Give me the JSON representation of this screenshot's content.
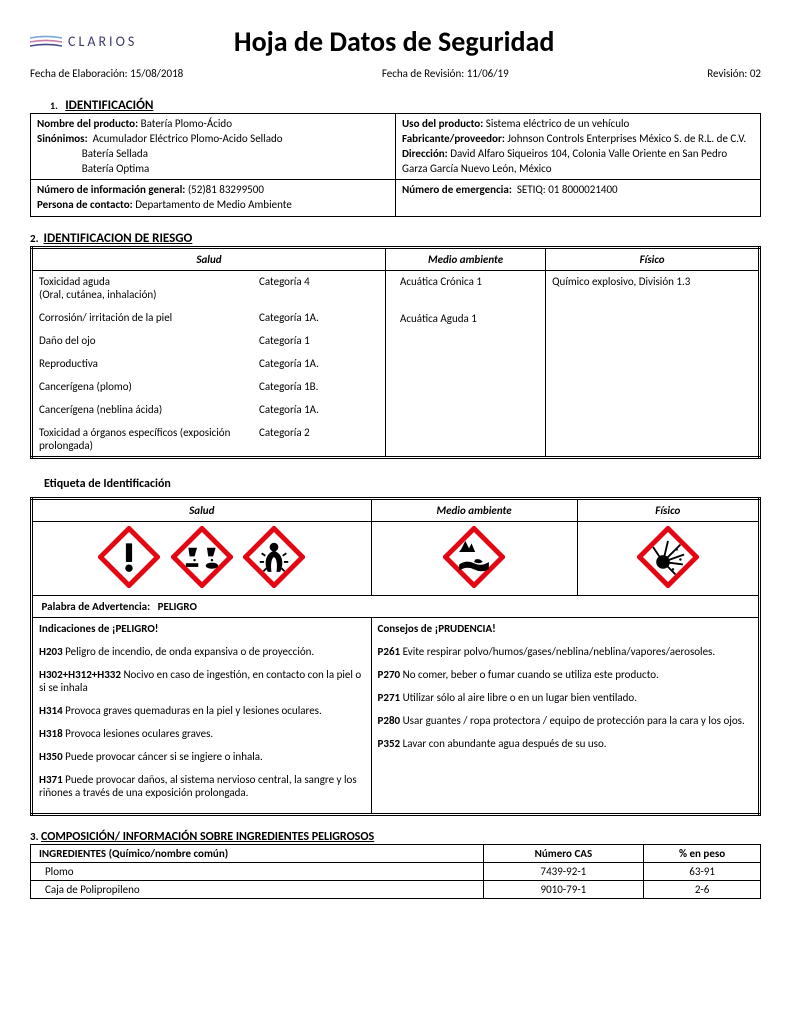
{
  "brand": "CLARIOS",
  "title": "Hoja de Datos de Seguridad",
  "meta": {
    "elab_label": "Fecha de Elaboración:",
    "elab_value": "15/08/2018",
    "rev_date_label": "Fecha de Revisión:",
    "rev_date_value": "11/06/19",
    "rev_label": "Revisión:",
    "rev_value": "02"
  },
  "s1": {
    "num": "1.",
    "title": "IDENTIFICACIÓN",
    "left1_label": "Nombre del producto:",
    "left1_value": "Batería Plomo-Ácido",
    "syn_label": "Sinónimos:",
    "syn1": "Acumulador Eléctrico Plomo-Acido Sellado",
    "syn2": "Batería Sellada",
    "syn3": "Batería Optima",
    "right1_label": "Uso del producto:",
    "right1_value": "Sistema eléctrico de un vehículo",
    "right2_label": "Fabricante/proveedor:",
    "right2_value": "Johnson Controls Enterprises México S. de R.L. de C.V.",
    "right3_label": "Dirección:",
    "right3_value": "David Alfaro Siqueiros 104, Colonia Valle Oriente en San Pedro Garza García Nuevo León, México",
    "left2_label": "Número de información general:",
    "left2_value": "(52)81 83299500",
    "left3_label": "Persona de contacto:",
    "left3_value": "Departamento de Medio Ambiente",
    "right4_label": "Número de emergencia:",
    "right4_value": "SETIQ: 01 8000021400"
  },
  "s2": {
    "num": "2.",
    "title": "IDENTIFICACION DE RIESGO",
    "col1": "Salud",
    "col2": "Medio ambiente",
    "col3": "Físico",
    "health": [
      {
        "name": "Toxicidad aguda",
        "extra": "(Oral, cutánea, inhalación)",
        "cat": "Categoría 4"
      },
      {
        "name": "Corrosión/ irritación de la piel",
        "extra": "",
        "cat": "Categoría 1A."
      },
      {
        "name": "Daño del ojo",
        "extra": "",
        "cat": "Categoría 1"
      },
      {
        "name": "Reproductiva",
        "extra": "",
        "cat": "Categoría 1A."
      },
      {
        "name": "Cancerígena (plomo)",
        "extra": "",
        "cat": "Categoría 1B."
      },
      {
        "name": "Cancerígena (neblina ácida)",
        "extra": "",
        "cat": "Categoría 1A."
      },
      {
        "name": "Toxicidad a órganos específicos (exposición prolongada)",
        "extra": "",
        "cat": "Categoría 2"
      }
    ],
    "env1": "Acuática Crónica 1",
    "env2": "Acuática Aguda 1",
    "phys1": "Químico explosivo, División 1.3",
    "etiqueta": "Etiqueta de Identificación",
    "warn_label": "Palabra de Advertencia:",
    "warn_value": "PELIGRO",
    "danger_head": "Indicaciones de  ¡PELIGRO!",
    "caution_head": "Consejos de ¡PRUDENCIA!",
    "H": [
      {
        "code": "H203",
        "text": " Peligro de incendio, de onda expansiva o de proyección."
      },
      {
        "code": "H302+H312+H332",
        "text": " Nocivo en caso de ingestión, en contacto con la piel o si se inhala"
      },
      {
        "code": "H314",
        "text": " Provoca graves quemaduras en la piel y lesiones oculares."
      },
      {
        "code": "H318",
        "text": " Provoca lesiones oculares graves."
      },
      {
        "code": "H350",
        "text": " Puede provocar cáncer si se ingiere o inhala."
      },
      {
        "code": "H371",
        "text": " Puede provocar daños, al sistema nervioso central, la sangre y los riñones a través de una exposición prolongada."
      }
    ],
    "P": [
      {
        "code": "P261",
        "text": " Evite respirar polvo/humos/gases/neblina/neblina/vapores/aerosoles."
      },
      {
        "code": "P270",
        "text": " No comer, beber o fumar cuando se utiliza este producto."
      },
      {
        "code": "P271",
        "text": " Utilizar sólo al aire libre o en un lugar bien ventilado."
      },
      {
        "code": "P280",
        "text": " Usar guantes / ropa protectora / equipo de protección para la cara y los ojos."
      },
      {
        "code": "P352",
        "text": " Lavar con abundante agua después de su uso."
      }
    ]
  },
  "s3": {
    "num": "3.",
    "title": "COMPOSICIÓN/ INFORMACIÓN SOBRE INGREDIENTES PELIGROSOS",
    "col1": "INGREDIENTES (Químico/nombre común)",
    "col2": "Número CAS",
    "col3": "% en peso",
    "rows": [
      {
        "name": "Plomo",
        "cas": "7439-92-1",
        "pct": "63-91"
      },
      {
        "name": "Caja de Polipropileno",
        "cas": "9010-79-1",
        "pct": "2-6"
      }
    ]
  },
  "colors": {
    "picto_border": "#e30613",
    "picto_fill": "#ffffff",
    "picto_ink": "#000000"
  }
}
